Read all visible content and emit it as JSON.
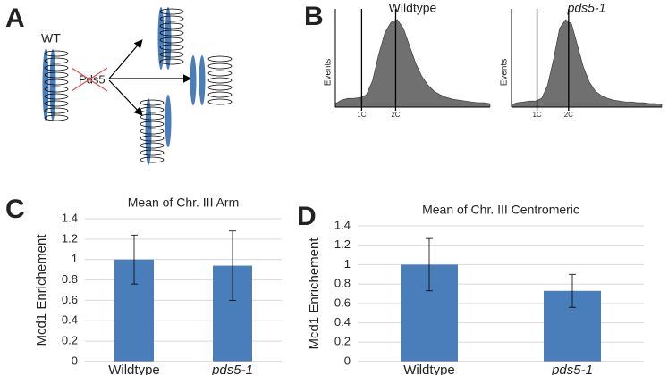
{
  "panel_labels": [
    "A",
    "B",
    "C",
    "D"
  ],
  "diagram": {
    "labels": [
      "WT",
      "Pds5"
    ]
  },
  "chart_data": [
    {
      "type": "area",
      "title": "Wildtype",
      "italic": false,
      "ylabel": "Events",
      "color": "#707070",
      "x": [
        0,
        4,
        8,
        12,
        16,
        20,
        24,
        28,
        32,
        36,
        40,
        44,
        48,
        52,
        56,
        60,
        64,
        68,
        72,
        76,
        80,
        84,
        88,
        92,
        96,
        100
      ],
      "values": [
        4,
        8,
        10,
        10,
        11,
        14,
        30,
        60,
        85,
        97,
        100,
        90,
        70,
        50,
        35,
        25,
        18,
        14,
        11,
        9,
        8,
        7,
        6,
        5,
        5,
        4
      ],
      "xlim": [
        0,
        100
      ],
      "ylim": [
        0,
        100
      ],
      "xticks": [
        {
          "value": 17,
          "label": "1C"
        },
        {
          "value": 39,
          "label": "2C"
        }
      ]
    },
    {
      "type": "area",
      "title": "pds5-1",
      "italic": true,
      "ylabel": "Events",
      "color": "#707070",
      "x": [
        0,
        4,
        8,
        12,
        16,
        20,
        24,
        28,
        32,
        36,
        40,
        44,
        48,
        52,
        56,
        60,
        64,
        68,
        72,
        76,
        80,
        84,
        88,
        92,
        96,
        100
      ],
      "values": [
        3,
        5,
        6,
        7,
        7,
        10,
        25,
        55,
        90,
        100,
        95,
        70,
        45,
        28,
        18,
        13,
        10,
        8,
        7,
        6,
        6,
        5,
        5,
        4,
        4,
        3
      ],
      "xlim": [
        0,
        100
      ],
      "ylim": [
        0,
        100
      ],
      "xticks": [
        {
          "value": 17,
          "label": "1C"
        },
        {
          "value": 38,
          "label": "2C"
        }
      ]
    },
    {
      "type": "bar",
      "title": "Mean of Chr. III Arm",
      "ylabel": "Mcd1 Enrichement",
      "color": "#4a7ebb",
      "categories": [
        "Wildtype",
        "pds5-1"
      ],
      "italic_categories": [
        false,
        true
      ],
      "values": [
        1.0,
        0.94
      ],
      "errors": [
        0.24,
        0.34
      ],
      "ylim": [
        0,
        1.4
      ],
      "yticks": [
        0,
        0.2,
        0.4,
        0.6,
        0.8,
        1,
        1.2,
        1.4
      ],
      "grid": true
    },
    {
      "type": "bar",
      "title": "Mean of Chr. III Centromeric",
      "ylabel": "Mcd1 Enrichement",
      "color": "#4a7ebb",
      "categories": [
        "Wildtype",
        "pds5-1"
      ],
      "italic_categories": [
        false,
        true
      ],
      "values": [
        1.0,
        0.73
      ],
      "errors": [
        0.27,
        0.17
      ],
      "ylim": [
        0,
        1.4
      ],
      "yticks": [
        0,
        0.2,
        0.4,
        0.6,
        0.8,
        1,
        1.2,
        1.4
      ],
      "grid": true
    }
  ]
}
